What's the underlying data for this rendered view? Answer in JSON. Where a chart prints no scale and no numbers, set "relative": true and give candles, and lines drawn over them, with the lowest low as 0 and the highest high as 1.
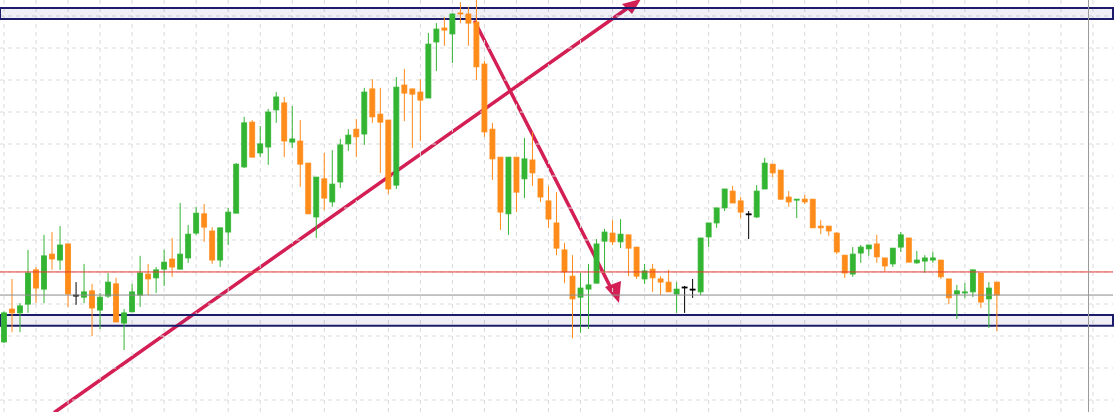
{
  "chart_data": {
    "type": "candlestick",
    "relative": true,
    "grid": true,
    "tick_labels": false,
    "categories": [
      null,
      null,
      null,
      null,
      null,
      null,
      null,
      null,
      null,
      null,
      null,
      null,
      null,
      null,
      null,
      null,
      null,
      null,
      null,
      null,
      null,
      null,
      null,
      null,
      null,
      null,
      null,
      null,
      null,
      null,
      null,
      null,
      null,
      null,
      null,
      null,
      null,
      null,
      null,
      null,
      null,
      null,
      null,
      null,
      null,
      null,
      null,
      null,
      null,
      null,
      null,
      null,
      null,
      null,
      null,
      null,
      null,
      null,
      null,
      null,
      null,
      null,
      null,
      null,
      null,
      null,
      null,
      null,
      null,
      null,
      null,
      null,
      null,
      null,
      null,
      null,
      null,
      null,
      null,
      null,
      null,
      null,
      null,
      null,
      null,
      null,
      null,
      null,
      null,
      null,
      null,
      null,
      null,
      null,
      null,
      null,
      null,
      null,
      null,
      null,
      null,
      null,
      null,
      null,
      null,
      null,
      null,
      null,
      null,
      null,
      null,
      null,
      null,
      null,
      null,
      null,
      null,
      null,
      null,
      null,
      null,
      null,
      null,
      null,
      null
    ],
    "ohlc": [
      [
        0.023,
        0.111,
        0.02,
        0.106
      ],
      [
        0.117,
        0.203,
        0.051,
        0.106
      ],
      [
        0.106,
        0.134,
        0.051,
        0.126
      ],
      [
        0.131,
        0.286,
        0.106,
        0.22
      ],
      [
        0.229,
        0.237,
        0.134,
        0.177
      ],
      [
        0.174,
        0.329,
        0.134,
        0.269
      ],
      [
        0.274,
        0.337,
        0.229,
        0.26
      ],
      [
        0.257,
        0.354,
        0.229,
        0.3
      ],
      [
        0.303,
        0.303,
        0.123,
        0.16
      ],
      [
        0.157,
        0.194,
        0.129,
        0.157
      ],
      [
        0.151,
        0.246,
        0.134,
        0.166
      ],
      [
        0.169,
        0.189,
        0.04,
        0.12
      ],
      [
        0.114,
        0.163,
        0.06,
        0.151
      ],
      [
        0.154,
        0.22,
        0.149,
        0.194
      ],
      [
        0.189,
        0.206,
        0.08,
        0.08
      ],
      [
        0.077,
        0.117,
        0,
        0.106
      ],
      [
        0.109,
        0.189,
        0.109,
        0.166
      ],
      [
        0.157,
        0.269,
        0.123,
        0.22
      ],
      [
        0.217,
        0.246,
        0.157,
        0.203
      ],
      [
        0.206,
        0.237,
        0.163,
        0.229
      ],
      [
        0.231,
        0.286,
        0.183,
        0.251
      ],
      [
        0.26,
        0.32,
        0.209,
        0.237
      ],
      [
        0.231,
        0.42,
        0.231,
        0.274
      ],
      [
        0.263,
        0.357,
        0.249,
        0.331
      ],
      [
        0.334,
        0.409,
        0.329,
        0.391
      ],
      [
        0.389,
        0.417,
        0.309,
        0.351
      ],
      [
        0.34,
        0.351,
        0.246,
        0.257
      ],
      [
        0.257,
        0.349,
        0.237,
        0.349
      ],
      [
        0.337,
        0.406,
        0.3,
        0.394
      ],
      [
        0.391,
        0.534,
        0.391,
        0.531
      ],
      [
        0.523,
        0.666,
        0.52,
        0.649
      ],
      [
        0.651,
        0.657,
        0.551,
        0.551
      ],
      [
        0.563,
        0.64,
        0.551,
        0.589
      ],
      [
        0.58,
        0.689,
        0.529,
        0.68
      ],
      [
        0.686,
        0.737,
        0.649,
        0.723
      ],
      [
        0.706,
        0.723,
        0.551,
        0.597
      ],
      [
        0.594,
        0.697,
        0.577,
        0.603
      ],
      [
        0.597,
        0.657,
        0.466,
        0.531
      ],
      [
        0.534,
        0.534,
        0.389,
        0.389
      ],
      [
        0.38,
        0.494,
        0.32,
        0.494
      ],
      [
        0.489,
        0.563,
        0.4,
        0.434
      ],
      [
        0.423,
        0.571,
        0.409,
        0.474
      ],
      [
        0.48,
        0.603,
        0.463,
        0.586
      ],
      [
        0.589,
        0.631,
        0.569,
        0.614
      ],
      [
        0.631,
        0.66,
        0.551,
        0.609
      ],
      [
        0.617,
        0.749,
        0.586,
        0.737
      ],
      [
        0.746,
        0.774,
        0.649,
        0.666
      ],
      [
        0.674,
        0.749,
        0.506,
        0.651
      ],
      [
        0.657,
        0.657,
        0.446,
        0.46
      ],
      [
        0.471,
        0.78,
        0.46,
        0.751
      ],
      [
        0.757,
        0.803,
        0.654,
        0.734
      ],
      [
        0.746,
        0.746,
        0.577,
        0.731
      ],
      [
        0.737,
        0.774,
        0.597,
        0.714
      ],
      [
        0.72,
        0.906,
        0.72,
        0.874
      ],
      [
        0.88,
        0.934,
        0.797,
        0.917
      ],
      [
        0.92,
        0.951,
        0.869,
        0.914
      ],
      [
        0.903,
        0.963,
        0.82,
        0.96
      ],
      [
        0.963,
        0.994,
        0.934,
        0.96
      ],
      [
        0.96,
        0.98,
        0.869,
        0.934
      ],
      [
        0.937,
        1,
        0.771,
        0.809
      ],
      [
        0.817,
        0.826,
        0.609,
        0.623
      ],
      [
        0.631,
        0.649,
        0.486,
        0.546
      ],
      [
        0.551,
        0.551,
        0.343,
        0.394
      ],
      [
        0.389,
        0.551,
        0.329,
        0.551
      ],
      [
        0.551,
        0.551,
        0.394,
        0.451
      ],
      [
        0.489,
        0.606,
        0.434,
        0.546
      ],
      [
        0.543,
        0.623,
        0.469,
        0.506
      ],
      [
        0.489,
        0.489,
        0.423,
        0.437
      ],
      [
        0.426,
        0.469,
        0.349,
        0.374
      ],
      [
        0.363,
        0.451,
        0.271,
        0.291
      ],
      [
        0.286,
        0.306,
        0.191,
        0.223
      ],
      [
        0.211,
        0.271,
        0.034,
        0.146
      ],
      [
        0.151,
        0.22,
        0.049,
        0.177
      ],
      [
        0.174,
        0.246,
        0.06,
        0.186
      ],
      [
        0.191,
        0.317,
        0.191,
        0.303
      ],
      [
        0.311,
        0.346,
        0.22,
        0.337
      ],
      [
        0.334,
        0.371,
        0.3,
        0.309
      ],
      [
        0.309,
        0.374,
        0.291,
        0.331
      ],
      [
        0.329,
        0.329,
        0.211,
        0.291
      ],
      [
        0.294,
        0.294,
        0.203,
        0.211
      ],
      [
        0.203,
        0.246,
        0.189,
        0.226
      ],
      [
        0.231,
        0.246,
        0.166,
        0.206
      ],
      [
        0.203,
        0.211,
        0.157,
        0.194
      ],
      [
        0.194,
        0.229,
        0.166,
        0.166
      ],
      [
        0.16,
        0.194,
        0.106,
        0.174
      ],
      [
        0.18,
        0.183,
        0.106,
        0.18
      ],
      [
        0.174,
        0.203,
        0.149,
        0.174
      ],
      [
        0.166,
        0.32,
        0.157,
        0.32
      ],
      [
        0.323,
        0.363,
        0.294,
        0.363
      ],
      [
        0.363,
        0.406,
        0.349,
        0.406
      ],
      [
        0.406,
        0.46,
        0.397,
        0.46
      ],
      [
        0.454,
        0.469,
        0.42,
        0.42
      ],
      [
        0.426,
        0.437,
        0.377,
        0.394
      ],
      [
        0.389,
        0.397,
        0.317,
        0.389
      ],
      [
        0.38,
        0.471,
        0.377,
        0.454
      ],
      [
        0.46,
        0.549,
        0.46,
        0.534
      ],
      [
        0.531,
        0.531,
        0.494,
        0.506
      ],
      [
        0.514,
        0.514,
        0.429,
        0.431
      ],
      [
        0.437,
        0.454,
        0.409,
        0.423
      ],
      [
        0.429,
        0.431,
        0.377,
        0.431
      ],
      [
        0.431,
        0.443,
        0.417,
        0.423
      ],
      [
        0.431,
        0.431,
        0.349,
        0.349
      ],
      [
        0.354,
        0.371,
        0.331,
        0.349
      ],
      [
        0.354,
        0.354,
        0.326,
        0.34
      ],
      [
        0.334,
        0.337,
        0.274,
        0.28
      ],
      [
        0.271,
        0.271,
        0.206,
        0.22
      ],
      [
        0.217,
        0.294,
        0.209,
        0.274
      ],
      [
        0.277,
        0.3,
        0.249,
        0.294
      ],
      [
        0.289,
        0.3,
        0.269,
        0.3
      ],
      [
        0.303,
        0.329,
        0.249,
        0.266
      ],
      [
        0.263,
        0.263,
        0.223,
        0.24
      ],
      [
        0.246,
        0.291,
        0.237,
        0.291
      ],
      [
        0.294,
        0.337,
        0.28,
        0.329
      ],
      [
        0.32,
        0.32,
        0.251,
        0.251
      ],
      [
        0.249,
        0.283,
        0.246,
        0.257
      ],
      [
        0.254,
        0.271,
        0.22,
        0.263
      ],
      [
        0.257,
        0.28,
        0.249,
        0.263
      ],
      [
        0.257,
        0.257,
        0.203,
        0.209
      ],
      [
        0.203,
        0.203,
        0.131,
        0.149
      ],
      [
        0.16,
        0.186,
        0.089,
        0.169
      ],
      [
        0.163,
        0.191,
        0.149,
        0.166
      ],
      [
        0.166,
        0.229,
        0.151,
        0.229
      ],
      [
        0.22,
        0.22,
        0.12,
        0.137
      ],
      [
        0.146,
        0.194,
        0.063,
        0.177
      ],
      [
        0.194,
        0.194,
        0.054,
        0.157
      ]
    ],
    "colors": [
      "#33b533",
      "#ff8c1a",
      "#33b533",
      "#33b533",
      "#ff8c1a",
      "#33b533",
      "#ff8c1a",
      "#33b533",
      "#ff8c1a",
      "#000000",
      "#33b533",
      "#ff8c1a",
      "#33b533",
      "#33b533",
      "#ff8c1a",
      "#33b533",
      "#33b533",
      "#33b533",
      "#ff8c1a",
      "#33b533",
      "#33b533",
      "#ff8c1a",
      "#33b533",
      "#33b533",
      "#33b533",
      "#ff8c1a",
      "#ff8c1a",
      "#33b533",
      "#33b533",
      "#33b533",
      "#33b533",
      "#ff8c1a",
      "#33b533",
      "#33b533",
      "#33b533",
      "#ff8c1a",
      "#33b533",
      "#ff8c1a",
      "#ff8c1a",
      "#33b533",
      "#ff8c1a",
      "#33b533",
      "#33b533",
      "#33b533",
      "#ff8c1a",
      "#33b533",
      "#ff8c1a",
      "#ff8c1a",
      "#ff8c1a",
      "#33b533",
      "#ff8c1a",
      "#ff8c1a",
      "#ff8c1a",
      "#33b533",
      "#33b533",
      "#ff8c1a",
      "#33b533",
      "#ff8c1a",
      "#ff8c1a",
      "#ff8c1a",
      "#ff8c1a",
      "#ff8c1a",
      "#ff8c1a",
      "#33b533",
      "#ff8c1a",
      "#33b533",
      "#ff8c1a",
      "#ff8c1a",
      "#ff8c1a",
      "#ff8c1a",
      "#ff8c1a",
      "#ff8c1a",
      "#33b533",
      "#33b533",
      "#33b533",
      "#33b533",
      "#ff8c1a",
      "#33b533",
      "#ff8c1a",
      "#ff8c1a",
      "#33b533",
      "#ff8c1a",
      "#ff8c1a",
      "#ff8c1a",
      "#33b533",
      "#000000",
      "#000000",
      "#33b533",
      "#33b533",
      "#33b533",
      "#33b533",
      "#ff8c1a",
      "#ff8c1a",
      "#000000",
      "#33b533",
      "#33b533",
      "#ff8c1a",
      "#ff8c1a",
      "#ff8c1a",
      "#33b533",
      "#ff8c1a",
      "#ff8c1a",
      "#ff8c1a",
      "#ff8c1a",
      "#ff8c1a",
      "#ff8c1a",
      "#33b533",
      "#33b533",
      "#33b533",
      "#ff8c1a",
      "#ff8c1a",
      "#33b533",
      "#33b533",
      "#ff8c1a",
      "#33b533",
      "#33b533",
      "#33b533",
      "#ff8c1a",
      "#ff8c1a",
      "#33b533",
      "#33b533",
      "#33b533",
      "#ff8c1a",
      "#33b533",
      "#ff8c1a"
    ],
    "ref_lines": [
      {
        "axis": "y",
        "value": 0.223,
        "color": "#e53935"
      },
      {
        "axis": "y",
        "value": 0.157,
        "color": "#8a8a8a"
      }
    ],
    "bands": [
      {
        "axis": "y",
        "from": 0.946,
        "to": 0.977,
        "color": "#1c1c6b"
      },
      {
        "axis": "y",
        "from": 0.069,
        "to": 0.1,
        "color": "#1c1c6b"
      }
    ]
  }
}
